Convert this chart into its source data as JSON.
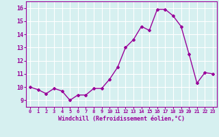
{
  "x": [
    0,
    1,
    2,
    3,
    4,
    5,
    6,
    7,
    8,
    9,
    10,
    11,
    12,
    13,
    14,
    15,
    16,
    17,
    18,
    19,
    20,
    21,
    22,
    23
  ],
  "y": [
    10.0,
    9.8,
    9.5,
    9.9,
    9.7,
    9.0,
    9.4,
    9.4,
    9.9,
    9.9,
    10.6,
    11.5,
    13.0,
    13.6,
    14.6,
    14.3,
    15.9,
    15.9,
    15.4,
    14.6,
    12.5,
    10.3,
    11.1,
    11.0
  ],
  "line_color": "#990099",
  "marker": "D",
  "marker_size": 2,
  "bg_color": "#d6f0f0",
  "grid_color": "#ffffff",
  "xlabel": "Windchill (Refroidissement éolien,°C)",
  "xlabel_color": "#990099",
  "tick_color": "#990099",
  "ylim": [
    8.5,
    16.5
  ],
  "xlim": [
    -0.5,
    23.5
  ],
  "yticks": [
    9,
    10,
    11,
    12,
    13,
    14,
    15,
    16
  ],
  "xticks": [
    0,
    1,
    2,
    3,
    4,
    5,
    6,
    7,
    8,
    9,
    10,
    11,
    12,
    13,
    14,
    15,
    16,
    17,
    18,
    19,
    20,
    21,
    22,
    23
  ],
  "line_width": 1.0
}
